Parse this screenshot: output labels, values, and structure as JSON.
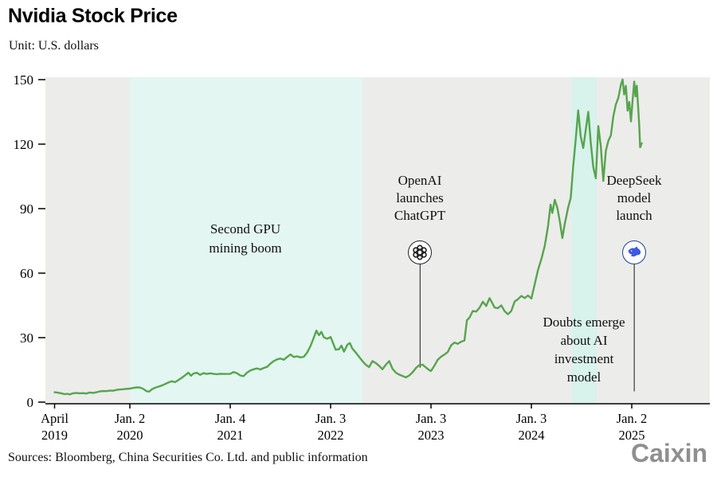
{
  "header": {
    "title": "Nvidia Stock Price",
    "subtitle": "Unit: U.S. dollars"
  },
  "footer": {
    "source": "Sources: Bloomberg, China Securities Co. Ltd. and public information",
    "brand": "Caixin"
  },
  "chart_data": {
    "type": "line",
    "title": "Nvidia Stock Price",
    "unit": "U.S. dollars",
    "x_unit": "months since April 2019",
    "ylim": [
      0,
      150
    ],
    "yticks": [
      0,
      30,
      60,
      90,
      120,
      150
    ],
    "grid": false,
    "plot_bg": "#ececeb",
    "x_ticks": [
      {
        "line1": "April",
        "line2": "2019",
        "month": 0
      },
      {
        "line1": "Jan. 2",
        "line2": "2020",
        "month": 9
      },
      {
        "line1": "Jan. 4",
        "line2": "2021",
        "month": 21
      },
      {
        "line1": "Jan. 3",
        "line2": "2022",
        "month": 33
      },
      {
        "line1": "Jan. 3",
        "line2": "2023",
        "month": 45
      },
      {
        "line1": "Jan. 3",
        "line2": "2024",
        "month": 57
      },
      {
        "line1": "Jan. 2",
        "line2": "2025",
        "month": 69
      }
    ],
    "highlight_bands": [
      {
        "label": "Second GPU mining boom",
        "start_month": 9,
        "end_month": 36.8,
        "color": "#e3f6f1"
      },
      {
        "label": "Doubts emerge about AI investment model",
        "start_month": 61.8,
        "end_month": 64.8,
        "color": "#d8f2ec"
      }
    ],
    "events": [
      {
        "label": "OpenAI launches ChatGPT",
        "icon": "openai-logo",
        "month": 43.7,
        "pointer_end_value": 16
      },
      {
        "label": "DeepSeek model launch",
        "icon": "deepseek-whale-logo",
        "month": 69.3,
        "pointer_end_value": 5
      }
    ],
    "annotations": {
      "gpu_boom": {
        "lines": [
          "Second GPU",
          "mining boom"
        ]
      },
      "openai": {
        "lines": [
          "OpenAI",
          "launches",
          "ChatGPT"
        ]
      },
      "deepseek": {
        "lines": [
          "DeepSeek",
          "model",
          "launch"
        ]
      },
      "doubts": {
        "lines": [
          "Doubts emerge",
          "about AI",
          "investment",
          "model"
        ]
      }
    },
    "series": [
      {
        "name": "Nvidia stock price (USD)",
        "color": "#56a44d",
        "points": [
          [
            0,
            4.6
          ],
          [
            0.4,
            4.4
          ],
          [
            0.8,
            4.1
          ],
          [
            1.2,
            3.7
          ],
          [
            1.5,
            3.9
          ],
          [
            1.8,
            3.6
          ],
          [
            2.2,
            4.1
          ],
          [
            2.6,
            4.3
          ],
          [
            3,
            4.1
          ],
          [
            3.4,
            4.2
          ],
          [
            3.8,
            4.0
          ],
          [
            4.2,
            4.5
          ],
          [
            4.6,
            4.3
          ],
          [
            5,
            4.6
          ],
          [
            5.4,
            5.0
          ],
          [
            5.8,
            5.2
          ],
          [
            6.2,
            5.1
          ],
          [
            6.6,
            5.4
          ],
          [
            7,
            5.3
          ],
          [
            7.4,
            5.7
          ],
          [
            7.8,
            5.9
          ],
          [
            8.2,
            6.0
          ],
          [
            8.6,
            6.2
          ],
          [
            9,
            6.3
          ],
          [
            9.4,
            6.6
          ],
          [
            9.8,
            6.9
          ],
          [
            10.2,
            6.8
          ],
          [
            10.6,
            6.2
          ],
          [
            11,
            5.1
          ],
          [
            11.3,
            4.9
          ],
          [
            11.6,
            5.9
          ],
          [
            12,
            6.7
          ],
          [
            12.4,
            7.2
          ],
          [
            12.8,
            7.7
          ],
          [
            13.2,
            8.4
          ],
          [
            13.6,
            9.1
          ],
          [
            14,
            9.7
          ],
          [
            14.4,
            9.3
          ],
          [
            14.8,
            10.3
          ],
          [
            15.2,
            11.3
          ],
          [
            15.6,
            12.5
          ],
          [
            16,
            13.7
          ],
          [
            16.3,
            12.3
          ],
          [
            16.6,
            13.3
          ],
          [
            17,
            13.7
          ],
          [
            17.4,
            12.7
          ],
          [
            17.8,
            13.5
          ],
          [
            18.2,
            13.1
          ],
          [
            18.6,
            13.4
          ],
          [
            19,
            13.2
          ],
          [
            19.4,
            13.0
          ],
          [
            19.8,
            13.2
          ],
          [
            20.4,
            13.1
          ],
          [
            21,
            13.2
          ],
          [
            21.4,
            14.0
          ],
          [
            21.8,
            13.5
          ],
          [
            22.2,
            12.4
          ],
          [
            22.6,
            12.1
          ],
          [
            23,
            13.7
          ],
          [
            23.4,
            14.7
          ],
          [
            23.8,
            15.3
          ],
          [
            24.2,
            15.7
          ],
          [
            24.6,
            15.2
          ],
          [
            25,
            15.9
          ],
          [
            25.4,
            16.4
          ],
          [
            25.8,
            17.9
          ],
          [
            26.2,
            19.1
          ],
          [
            26.6,
            19.9
          ],
          [
            27,
            20.3
          ],
          [
            27.4,
            19.7
          ],
          [
            27.8,
            21.0
          ],
          [
            28.2,
            22.2
          ],
          [
            28.6,
            21.0
          ],
          [
            29,
            21.3
          ],
          [
            29.4,
            20.8
          ],
          [
            29.8,
            21.1
          ],
          [
            30.2,
            23.1
          ],
          [
            30.6,
            26.1
          ],
          [
            31,
            30.1
          ],
          [
            31.3,
            33.3
          ],
          [
            31.6,
            31.1
          ],
          [
            31.9,
            32.7
          ],
          [
            32.2,
            30.1
          ],
          [
            32.6,
            29.5
          ],
          [
            33,
            30.3
          ],
          [
            33.3,
            27.4
          ],
          [
            33.6,
            24.4
          ],
          [
            34,
            24.6
          ],
          [
            34.3,
            26.3
          ],
          [
            34.6,
            23.5
          ],
          [
            35,
            26.7
          ],
          [
            35.3,
            27.5
          ],
          [
            35.6,
            24.9
          ],
          [
            36,
            23.1
          ],
          [
            36.4,
            21.1
          ],
          [
            36.8,
            19.1
          ],
          [
            37.2,
            17.4
          ],
          [
            37.6,
            16.3
          ],
          [
            38,
            19.1
          ],
          [
            38.4,
            18.2
          ],
          [
            38.8,
            16.9
          ],
          [
            39.2,
            15.3
          ],
          [
            39.6,
            17.4
          ],
          [
            40,
            19.1
          ],
          [
            40.4,
            15.5
          ],
          [
            40.8,
            13.7
          ],
          [
            41.2,
            12.8
          ],
          [
            41.6,
            12.2
          ],
          [
            42,
            11.5
          ],
          [
            42.4,
            12.4
          ],
          [
            42.8,
            13.9
          ],
          [
            43.2,
            15.9
          ],
          [
            43.6,
            17.2
          ],
          [
            44,
            17.4
          ],
          [
            44.4,
            16.1
          ],
          [
            44.8,
            14.9
          ],
          [
            45,
            14.5
          ],
          [
            45.4,
            16.9
          ],
          [
            45.8,
            19.7
          ],
          [
            46.2,
            21.1
          ],
          [
            46.6,
            22.1
          ],
          [
            47,
            23.3
          ],
          [
            47.4,
            26.4
          ],
          [
            47.8,
            27.7
          ],
          [
            48.2,
            27.1
          ],
          [
            48.6,
            28.1
          ],
          [
            49,
            28.7
          ],
          [
            49.3,
            38.1
          ],
          [
            49.6,
            39.3
          ],
          [
            50,
            42.4
          ],
          [
            50.4,
            42.1
          ],
          [
            50.8,
            43.9
          ],
          [
            51.2,
            46.7
          ],
          [
            51.6,
            44.7
          ],
          [
            52,
            48.4
          ],
          [
            52.3,
            46.3
          ],
          [
            52.6,
            44.0
          ],
          [
            53,
            43.7
          ],
          [
            53.4,
            45.0
          ],
          [
            53.8,
            42.3
          ],
          [
            54.2,
            40.9
          ],
          [
            54.6,
            42.4
          ],
          [
            55,
            46.8
          ],
          [
            55.4,
            47.9
          ],
          [
            55.8,
            49.4
          ],
          [
            56.2,
            48.4
          ],
          [
            56.6,
            49.6
          ],
          [
            57,
            48.2
          ],
          [
            57.4,
            54.9
          ],
          [
            57.8,
            61.6
          ],
          [
            58.2,
            66.6
          ],
          [
            58.6,
            72.7
          ],
          [
            59,
            82.1
          ],
          [
            59.3,
            91.9
          ],
          [
            59.5,
            88.0
          ],
          [
            59.8,
            94.1
          ],
          [
            60.1,
            90.4
          ],
          [
            60.4,
            84.1
          ],
          [
            60.7,
            76.3
          ],
          [
            61,
            83.1
          ],
          [
            61.4,
            90.6
          ],
          [
            61.7,
            95.0
          ],
          [
            62,
            109.7
          ],
          [
            62.3,
            121.9
          ],
          [
            62.6,
            135.7
          ],
          [
            62.9,
            123.6
          ],
          [
            63.2,
            118.2
          ],
          [
            63.5,
            126.7
          ],
          [
            63.8,
            135.0
          ],
          [
            64.1,
            120.9
          ],
          [
            64.4,
            109.3
          ],
          [
            64.7,
            104.1
          ],
          [
            65,
            128.4
          ],
          [
            65.3,
            119.2
          ],
          [
            65.6,
            102.9
          ],
          [
            65.9,
            117.0
          ],
          [
            66.2,
            121.5
          ],
          [
            66.5,
            124.1
          ],
          [
            66.8,
            133.0
          ],
          [
            67.1,
            138.4
          ],
          [
            67.4,
            141.6
          ],
          [
            67.7,
            147.7
          ],
          [
            67.9,
            150.1
          ],
          [
            68.1,
            143.1
          ],
          [
            68.3,
            147.1
          ],
          [
            68.5,
            135.6
          ],
          [
            68.7,
            139.6
          ],
          [
            68.9,
            130.6
          ],
          [
            69.1,
            140.1
          ],
          [
            69.3,
            149.1
          ],
          [
            69.45,
            142.2
          ],
          [
            69.6,
            147.2
          ],
          [
            69.75,
            138.0
          ],
          [
            69.9,
            128.0
          ],
          [
            70,
            118.5
          ],
          [
            70.2,
            120.4
          ]
        ]
      }
    ]
  }
}
